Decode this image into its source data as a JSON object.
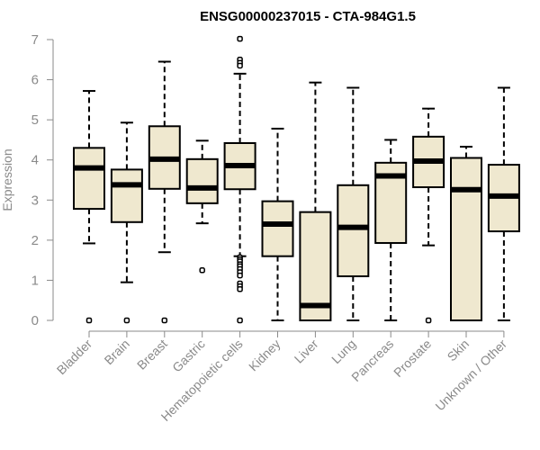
{
  "chart_data": {
    "type": "box",
    "title": "ENSG00000237015 - CTA-984G1.5",
    "xlabel": "",
    "ylabel": "Expression",
    "ylim": [
      0,
      7
    ],
    "yticks": [
      "0",
      "1",
      "2",
      "3",
      "4",
      "5",
      "6",
      "7"
    ],
    "grid": false,
    "fill_color": "#efe8cf",
    "line_color": "#000000",
    "axis_color": "#8a8a8a",
    "categories": [
      "Bladder",
      "Brain",
      "Breast",
      "Gastric",
      "Hematopoietic cells",
      "Kidney",
      "Liver",
      "Lung",
      "Pancreas",
      "Prostate",
      "Skin",
      "Unknown / Other"
    ],
    "boxes": [
      {
        "category": "Bladder",
        "whisker_low": 1.92,
        "q1": 2.78,
        "median": 3.8,
        "q3": 4.3,
        "whisker_high": 5.72,
        "outliers": [
          0
        ]
      },
      {
        "category": "Brain",
        "whisker_low": 0.95,
        "q1": 2.45,
        "median": 3.38,
        "q3": 3.76,
        "whisker_high": 4.93,
        "outliers": [
          0
        ]
      },
      {
        "category": "Breast",
        "whisker_low": 1.7,
        "q1": 3.28,
        "median": 4.02,
        "q3": 4.84,
        "whisker_high": 6.45,
        "outliers": [
          0
        ]
      },
      {
        "category": "Gastric",
        "whisker_low": 2.42,
        "q1": 2.92,
        "median": 3.3,
        "q3": 4.02,
        "whisker_high": 4.48,
        "outliers": [
          1.25
        ]
      },
      {
        "category": "Hematopoietic cells",
        "whisker_low": 1.6,
        "q1": 3.27,
        "median": 3.86,
        "q3": 4.42,
        "whisker_high": 6.15,
        "outliers": [
          7.02,
          6.5,
          6.42,
          6.35,
          1.57,
          1.52,
          1.47,
          1.4,
          1.35,
          1.28,
          1.2,
          1.12,
          0.92,
          0.85,
          0.78,
          0
        ]
      },
      {
        "category": "Kidney",
        "whisker_low": 0,
        "q1": 1.6,
        "median": 2.4,
        "q3": 2.97,
        "whisker_high": 4.78,
        "outliers": []
      },
      {
        "category": "Liver",
        "whisker_low": 0,
        "q1": 0,
        "median": 0.37,
        "q3": 2.7,
        "whisker_high": 5.93,
        "outliers": []
      },
      {
        "category": "Lung",
        "whisker_low": 0,
        "q1": 1.1,
        "median": 2.32,
        "q3": 3.37,
        "whisker_high": 5.8,
        "outliers": []
      },
      {
        "category": "Pancreas",
        "whisker_low": 0,
        "q1": 1.93,
        "median": 3.6,
        "q3": 3.93,
        "whisker_high": 4.5,
        "outliers": []
      },
      {
        "category": "Prostate",
        "whisker_low": 1.87,
        "q1": 3.32,
        "median": 3.97,
        "q3": 4.58,
        "whisker_high": 5.28,
        "outliers": [
          0
        ]
      },
      {
        "category": "Skin",
        "whisker_low": 0,
        "q1": 0,
        "median": 3.26,
        "q3": 4.05,
        "whisker_high": 4.33,
        "outliers": []
      },
      {
        "category": "Unknown / Other",
        "whisker_low": 0,
        "q1": 2.22,
        "median": 3.1,
        "q3": 3.88,
        "whisker_high": 5.8,
        "outliers": []
      }
    ]
  }
}
